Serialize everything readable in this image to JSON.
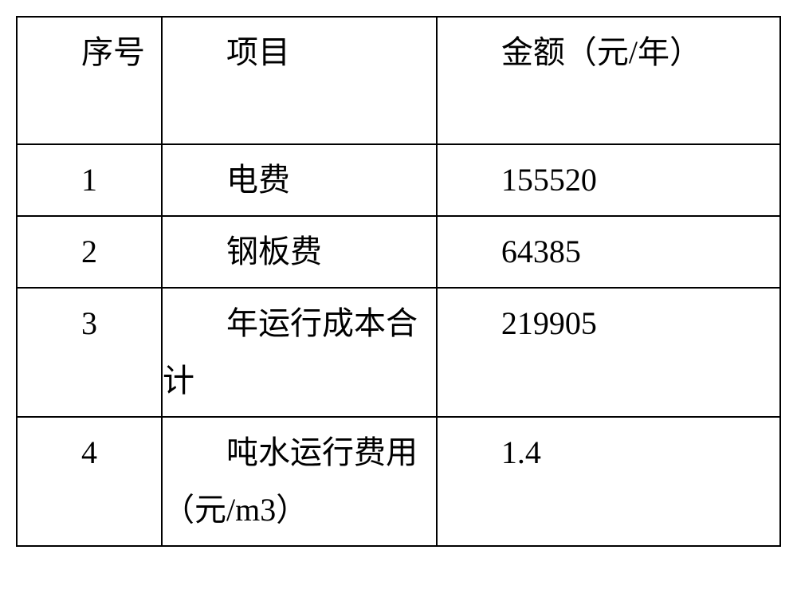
{
  "table": {
    "type": "table",
    "columns": [
      {
        "label": "序号",
        "width_percent": 19,
        "align": "left",
        "text_indent": "2em"
      },
      {
        "label": "项目",
        "width_percent": 36,
        "align": "left",
        "text_indent": "2em"
      },
      {
        "label": "金额（元/年）",
        "width_percent": 45,
        "align": "left",
        "text_indent": "2em"
      }
    ],
    "rows": [
      {
        "seq": "1",
        "item": "电费",
        "amount": "155520"
      },
      {
        "seq": "2",
        "item": "钢板费",
        "amount": "64385"
      },
      {
        "seq": "3",
        "item": "年运行成本合计",
        "amount": "219905"
      },
      {
        "seq": "4",
        "item": "吨水运行费用（元/m3）",
        "amount": "1.4"
      }
    ],
    "styling": {
      "border_color": "#000000",
      "border_width": 2,
      "background_color": "#ffffff",
      "text_color": "#000000",
      "font_size": 40,
      "font_family": "SimSun",
      "line_height": 1.8
    }
  }
}
